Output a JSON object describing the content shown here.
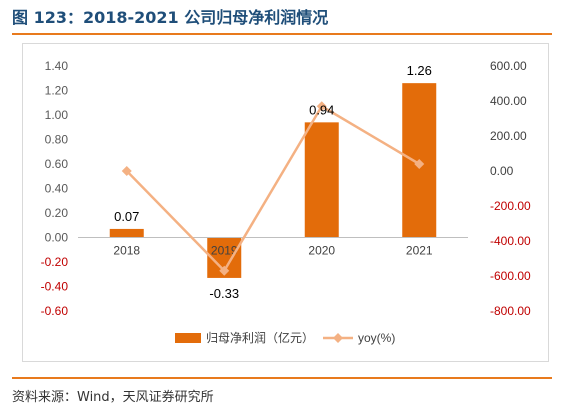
{
  "figure": {
    "title": "图 123：2018-2021 公司归母净利润情况",
    "source": "资料来源：Wind，天风证券研究所"
  },
  "colors": {
    "bar": "#e36c0a",
    "line": "#f4b183",
    "left_axis_text": "#595959",
    "negative_text": "#c00000",
    "accent_rule": "#e87a1d",
    "title": "#1f4e79"
  },
  "chart_data": {
    "type": "bar+line",
    "categories": [
      "2018",
      "2019",
      "2020",
      "2021"
    ],
    "series": [
      {
        "name": "归母净利润（亿元）",
        "type": "bar",
        "axis": "left",
        "values": [
          0.07,
          -0.33,
          0.94,
          1.26
        ],
        "data_labels": [
          "0.07",
          "-0.33",
          "0.94",
          "1.26"
        ]
      },
      {
        "name": "yoy(%)",
        "type": "line",
        "axis": "right",
        "values": [
          0,
          -570,
          370,
          40
        ]
      }
    ],
    "left_axis": {
      "min": -0.6,
      "max": 1.4,
      "step": 0.2,
      "ticks": [
        "-0.60",
        "-0.40",
        "-0.20",
        "0.00",
        "0.20",
        "0.40",
        "0.60",
        "0.80",
        "1.00",
        "1.20",
        "1.40"
      ]
    },
    "right_axis": {
      "min": -800,
      "max": 600,
      "step": 200,
      "ticks": [
        "-800.00",
        "-600.00",
        "-400.00",
        "-200.00",
        "0.00",
        "200.00",
        "400.00",
        "600.00"
      ]
    },
    "grid": false,
    "legend_position": "bottom"
  }
}
